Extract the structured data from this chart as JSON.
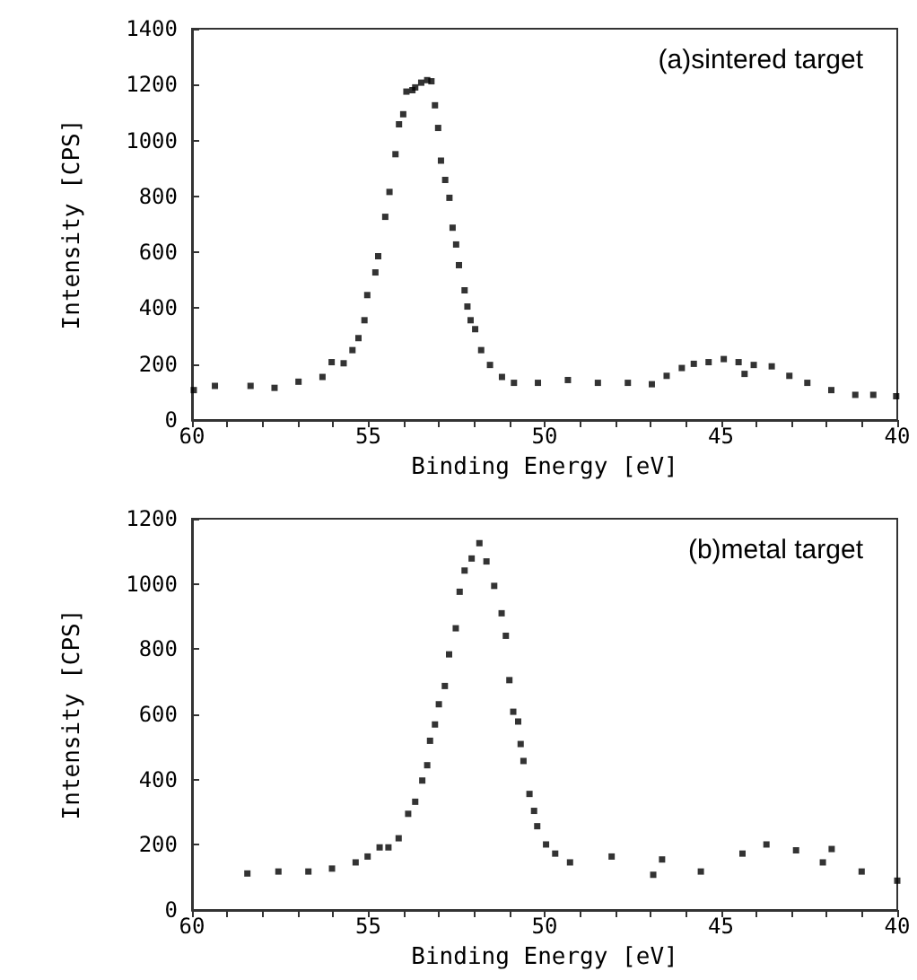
{
  "chart_data": [
    {
      "type": "scatter",
      "xlabel": "Binding Energy [eV]",
      "ylabel": "Intensity [CPS]",
      "annotations": [
        "(a)sintered target"
      ],
      "marker": "square",
      "grid": false,
      "xlim": [
        60,
        40
      ],
      "xticks": [
        60,
        {
          "value": 59,
          "label": null
        },
        {
          "value": 58,
          "label": null
        },
        {
          "value": 57,
          "label": null
        },
        {
          "value": 56,
          "label": null
        },
        55,
        {
          "value": 54,
          "label": null
        },
        {
          "value": 53,
          "label": null
        },
        {
          "value": 52,
          "label": null
        },
        {
          "value": 51,
          "label": null
        },
        50,
        {
          "value": 49,
          "label": null
        },
        {
          "value": 48,
          "label": null
        },
        {
          "value": 47,
          "label": null
        },
        {
          "value": 46,
          "label": null
        },
        45,
        {
          "value": 44,
          "label": null
        },
        {
          "value": 43,
          "label": null
        },
        {
          "value": 42,
          "label": null
        },
        {
          "value": 41,
          "label": null
        },
        40
      ],
      "ylim": [
        0,
        1400
      ],
      "yticks": [
        0,
        200,
        400,
        600,
        800,
        1000,
        1200,
        1400
      ],
      "series": [
        {
          "color": "#000000",
          "x": [
            59.95,
            59.35,
            58.34,
            57.66,
            56.98,
            56.3,
            56.04,
            55.7,
            55.45,
            55.28,
            55.11,
            55.03,
            54.8,
            54.72,
            54.52,
            54.4,
            54.23,
            54.13,
            54.01,
            53.92,
            53.75,
            53.67,
            53.5,
            53.33,
            53.21,
            53.11,
            53.02,
            52.94,
            52.82,
            52.7,
            52.61,
            52.51,
            52.43,
            52.27,
            52.19,
            52.1,
            51.97,
            51.8,
            51.55,
            51.21,
            50.87,
            50.19,
            49.34,
            48.49,
            47.64,
            46.96,
            46.54,
            46.11,
            45.77,
            45.35,
            44.92,
            44.5,
            44.33,
            44.07,
            43.56,
            43.06,
            42.55,
            41.87,
            41.19,
            40.68,
            40.03
          ],
          "values": [
            107,
            122,
            122,
            115,
            137,
            154,
            207,
            203,
            250,
            293,
            357,
            447,
            528,
            586,
            727,
            816,
            951,
            1058,
            1094,
            1175,
            1180,
            1190,
            1207,
            1216,
            1212,
            1126,
            1045,
            928,
            859,
            795,
            688,
            628,
            554,
            464,
            406,
            357,
            325,
            250,
            197,
            154,
            133,
            133,
            143,
            133,
            133,
            128,
            158,
            186,
            201,
            207,
            218,
            207,
            165,
            197,
            192,
            158,
            133,
            107,
            90,
            90,
            85
          ]
        }
      ]
    },
    {
      "type": "scatter",
      "xlabel": "Binding Energy [eV]",
      "ylabel": "Intensity [CPS]",
      "annotations": [
        "(b)metal target"
      ],
      "marker": "square",
      "grid": false,
      "xlim": [
        60,
        40
      ],
      "xticks": [
        60,
        {
          "value": 59,
          "label": null
        },
        {
          "value": 58,
          "label": null
        },
        {
          "value": 57,
          "label": null
        },
        {
          "value": 56,
          "label": null
        },
        55,
        {
          "value": 54,
          "label": null
        },
        {
          "value": 53,
          "label": null
        },
        {
          "value": 52,
          "label": null
        },
        {
          "value": 51,
          "label": null
        },
        50,
        {
          "value": 49,
          "label": null
        },
        {
          "value": 48,
          "label": null
        },
        {
          "value": 47,
          "label": null
        },
        {
          "value": 46,
          "label": null
        },
        45,
        {
          "value": 44,
          "label": null
        },
        {
          "value": 43,
          "label": null
        },
        {
          "value": 42,
          "label": null
        },
        {
          "value": 41,
          "label": null
        },
        40
      ],
      "ylim": [
        0,
        1200
      ],
      "yticks": [
        0,
        200,
        400,
        600,
        800,
        1000,
        1200
      ],
      "series": [
        {
          "color": "#000000",
          "x": [
            58.43,
            57.55,
            56.7,
            56.03,
            55.36,
            55.02,
            54.68,
            54.43,
            54.14,
            53.87,
            53.67,
            53.47,
            53.33,
            53.25,
            53.11,
            53.0,
            52.83,
            52.71,
            52.52,
            52.41,
            52.27,
            52.07,
            51.85,
            51.65,
            51.43,
            51.22,
            51.1,
            51.0,
            50.89,
            50.75,
            50.68,
            50.6,
            50.43,
            50.3,
            50.21,
            49.96,
            49.7,
            49.28,
            48.1,
            46.92,
            46.67,
            45.57,
            44.39,
            43.71,
            42.87,
            42.11,
            41.86,
            41.01,
            40.0
          ],
          "values": [
            112,
            118,
            118,
            127,
            146,
            164,
            192,
            192,
            220,
            295,
            332,
            397,
            444,
            519,
            569,
            631,
            687,
            784,
            864,
            976,
            1041,
            1078,
            1125,
            1069,
            994,
            910,
            841,
            705,
            608,
            578,
            509,
            457,
            356,
            304,
            257,
            201,
            173,
            146,
            164,
            108,
            155,
            118,
            173,
            201,
            183,
            146,
            187,
            118,
            90
          ]
        }
      ]
    }
  ]
}
